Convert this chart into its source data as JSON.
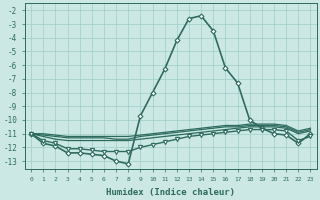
{
  "xlabel": "Humidex (Indice chaleur)",
  "ylabel": "",
  "background_color": "#cce8e4",
  "grid_color": "#9ecec8",
  "line_color": "#2d6b5e",
  "xlim": [
    -0.5,
    23.5
  ],
  "ylim": [
    -13.6,
    -1.5
  ],
  "yticks": [
    -2,
    -3,
    -4,
    -5,
    -6,
    -7,
    -8,
    -9,
    -10,
    -11,
    -12,
    -13
  ],
  "xticks": [
    0,
    1,
    2,
    3,
    4,
    5,
    6,
    7,
    8,
    9,
    10,
    11,
    12,
    13,
    14,
    15,
    16,
    17,
    18,
    19,
    20,
    21,
    22,
    23
  ],
  "series": [
    {
      "x": [
        0,
        1,
        2,
        3,
        4,
        5,
        6,
        7,
        8,
        9,
        10,
        11,
        12,
        13,
        14,
        15,
        16,
        17,
        18,
        19,
        20,
        21,
        22,
        23
      ],
      "y": [
        -11,
        -11.7,
        -11.9,
        -12.4,
        -12.4,
        -12.5,
        -12.6,
        -13.0,
        -13.2,
        -9.7,
        -8.0,
        -6.3,
        -4.2,
        -2.6,
        -2.4,
        -3.5,
        -6.2,
        -7.3,
        -10.0,
        -10.6,
        -11.0,
        -11.1,
        -11.7,
        -11.0
      ],
      "marker": "D",
      "markersize": 2.5,
      "linewidth": 1.2
    },
    {
      "x": [
        0,
        1,
        2,
        3,
        4,
        5,
        6,
        7,
        8,
        9,
        10,
        11,
        12,
        13,
        14,
        15,
        16,
        17,
        18,
        19,
        20,
        21,
        22,
        23
      ],
      "y": [
        -11.0,
        -11.2,
        -11.4,
        -11.5,
        -11.5,
        -11.5,
        -11.5,
        -11.5,
        -11.5,
        -11.4,
        -11.3,
        -11.2,
        -11.1,
        -11.0,
        -10.9,
        -10.8,
        -10.7,
        -10.6,
        -10.5,
        -10.5,
        -10.5,
        -10.6,
        -11.0,
        -10.8
      ],
      "marker": null,
      "markersize": 0,
      "linewidth": 0.9
    },
    {
      "x": [
        0,
        1,
        2,
        3,
        4,
        5,
        6,
        7,
        8,
        9,
        10,
        11,
        12,
        13,
        14,
        15,
        16,
        17,
        18,
        19,
        20,
        21,
        22,
        23
      ],
      "y": [
        -11.0,
        -11.1,
        -11.2,
        -11.3,
        -11.3,
        -11.3,
        -11.3,
        -11.4,
        -11.4,
        -11.2,
        -11.1,
        -11.0,
        -10.9,
        -10.8,
        -10.7,
        -10.6,
        -10.5,
        -10.5,
        -10.4,
        -10.4,
        -10.4,
        -10.5,
        -10.9,
        -10.7
      ],
      "marker": null,
      "markersize": 0,
      "linewidth": 0.9
    },
    {
      "x": [
        0,
        1,
        2,
        3,
        4,
        5,
        6,
        7,
        8,
        9,
        10,
        11,
        12,
        13,
        14,
        15,
        16,
        17,
        18,
        19,
        20,
        21,
        22,
        23
      ],
      "y": [
        -11.0,
        -11.0,
        -11.1,
        -11.2,
        -11.2,
        -11.2,
        -11.2,
        -11.2,
        -11.2,
        -11.1,
        -11.0,
        -10.9,
        -10.8,
        -10.7,
        -10.6,
        -10.5,
        -10.4,
        -10.4,
        -10.3,
        -10.3,
        -10.3,
        -10.4,
        -10.8,
        -10.6
      ],
      "marker": null,
      "markersize": 0,
      "linewidth": 0.9
    },
    {
      "x": [
        0,
        1,
        2,
        3,
        4,
        5,
        6,
        7,
        8,
        9,
        10,
        11,
        12,
        13,
        14,
        15,
        16,
        17,
        18,
        19,
        20,
        21,
        22,
        23
      ],
      "y": [
        -11.0,
        -11.5,
        -11.7,
        -12.1,
        -12.1,
        -12.2,
        -12.3,
        -12.3,
        -12.3,
        -12.0,
        -11.8,
        -11.6,
        -11.4,
        -11.2,
        -11.1,
        -11.0,
        -10.9,
        -10.8,
        -10.7,
        -10.7,
        -10.7,
        -10.8,
        -11.5,
        -11.2
      ],
      "marker": "v",
      "markersize": 3,
      "linewidth": 1.0
    }
  ]
}
